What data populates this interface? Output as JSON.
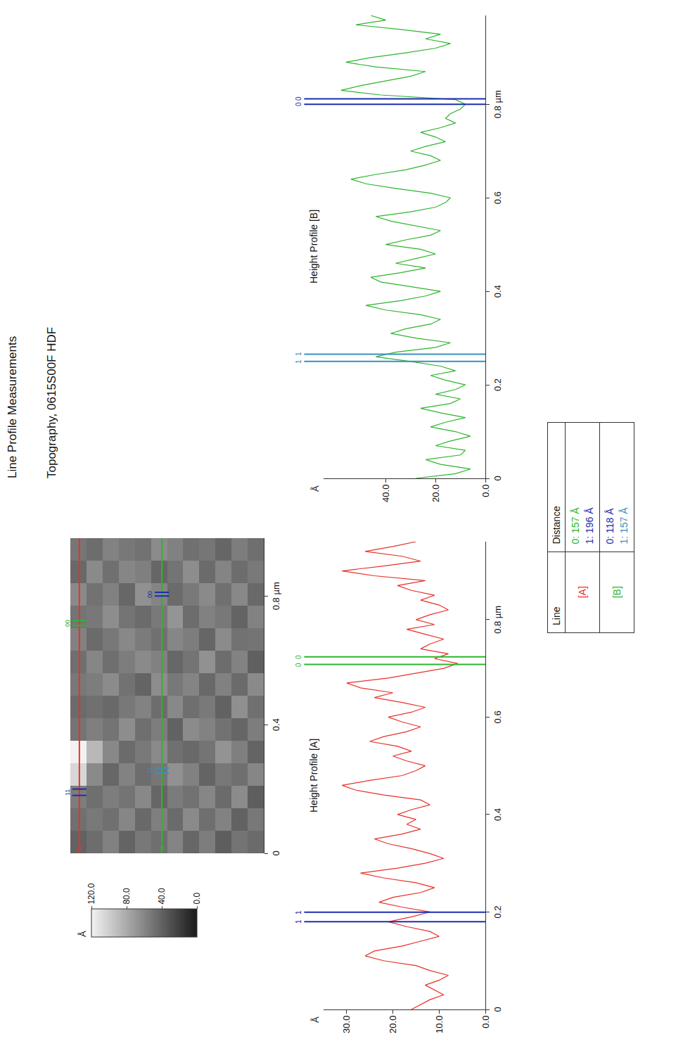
{
  "header": {
    "title": "Line Profile Measurements",
    "subtitle": "Topography, 0615S00F HDF"
  },
  "chart_data": [
    {
      "type": "heatmap",
      "x": [
        0.035,
        0.105,
        0.175,
        0.245,
        0.315,
        0.385,
        0.455,
        0.525,
        0.595,
        0.665,
        0.735,
        0.805,
        0.875,
        0.945
      ],
      "y": [
        0.025,
        0.075,
        0.125,
        0.175,
        0.225,
        0.275,
        0.325,
        0.375,
        0.425,
        0.475,
        0.525,
        0.575
      ],
      "z": [
        [
          45,
          52,
          38,
          60,
          41,
          55,
          48,
          62,
          39,
          50,
          58,
          44,
          53,
          47
        ],
        [
          50,
          40,
          63,
          47,
          56,
          42,
          65,
          45,
          58,
          49,
          41,
          61,
          46,
          55
        ],
        [
          38,
          58,
          45,
          52,
          67,
          49,
          40,
          57,
          46,
          63,
          52,
          48,
          59,
          42
        ],
        [
          55,
          47,
          60,
          41,
          50,
          58,
          53,
          44,
          66,
          42,
          57,
          62,
          45,
          51
        ],
        [
          43,
          62,
          49,
          57,
          44,
          63,
          47,
          59,
          50,
          55,
          46,
          53,
          64,
          48
        ],
        [
          59,
          45,
          54,
          66,
          48,
          40,
          61,
          52,
          43,
          60,
          68,
          45,
          50,
          57
        ],
        [
          47,
          56,
          42,
          51,
          62,
          55,
          46,
          64,
          57,
          48,
          53,
          59,
          42,
          63
        ],
        [
          52,
          44,
          61,
          46,
          53,
          47,
          58,
          41,
          62,
          54,
          45,
          66,
          56,
          49
        ],
        [
          41,
          60,
          50,
          58,
          45,
          64,
          52,
          49,
          55,
          61,
          50,
          43,
          60,
          52
        ],
        [
          57,
          48,
          55,
          43,
          61,
          50,
          44,
          63,
          47,
          52,
          64,
          57,
          48,
          58
        ],
        [
          46,
          53,
          47,
          62,
          88,
          56,
          48,
          55,
          60,
          45,
          52,
          49,
          62,
          46
        ],
        [
          40,
          48,
          55,
          105,
          120,
          50,
          45,
          52,
          47,
          58,
          50,
          62,
          44,
          51
        ]
      ],
      "xlim": [
        0,
        0.98
      ],
      "ylim": [
        0,
        0.6
      ],
      "xticks": [
        0,
        0.4,
        {
          "value": 0.8,
          "label": "0.8 µm"
        }
      ],
      "tick_labels": "x",
      "colorbar": {
        "title": "Å",
        "zlim": [
          0,
          120
        ],
        "zticks": [
          {
            "value": 0,
            "label": "0.0"
          },
          {
            "value": 40,
            "label": "40.0"
          },
          {
            "value": 80,
            "label": "80.0"
          },
          {
            "value": 120,
            "label": "120.0"
          }
        ]
      },
      "profile_lines": [
        {
          "name": "A",
          "color": "#e8302a",
          "y": 0.572
        },
        {
          "name": "B",
          "color": "#2db52d",
          "y": 0.316
        }
      ]
    },
    {
      "type": "line",
      "title": "Height Profile [A]",
      "color": "#e8302a",
      "y_label": "Å",
      "x": [
        0,
        0.01,
        0.02,
        0.03,
        0.04,
        0.05,
        0.06,
        0.07,
        0.08,
        0.09,
        0.1,
        0.11,
        0.12,
        0.13,
        0.14,
        0.15,
        0.16,
        0.17,
        0.18,
        0.19,
        0.2,
        0.21,
        0.22,
        0.23,
        0.24,
        0.25,
        0.26,
        0.27,
        0.28,
        0.29,
        0.3,
        0.31,
        0.32,
        0.33,
        0.34,
        0.35,
        0.36,
        0.37,
        0.38,
        0.39,
        0.4,
        0.41,
        0.42,
        0.43,
        0.44,
        0.45,
        0.46,
        0.47,
        0.48,
        0.49,
        0.5,
        0.51,
        0.52,
        0.53,
        0.54,
        0.55,
        0.56,
        0.57,
        0.58,
        0.59,
        0.6,
        0.61,
        0.62,
        0.63,
        0.64,
        0.65,
        0.66,
        0.67,
        0.68,
        0.69,
        0.7,
        0.71,
        0.72,
        0.73,
        0.74,
        0.75,
        0.76,
        0.77,
        0.78,
        0.79,
        0.8,
        0.81,
        0.82,
        0.83,
        0.84,
        0.85,
        0.86,
        0.87,
        0.88,
        0.89,
        0.9,
        0.91,
        0.92,
        0.93,
        0.94,
        0.95,
        0.96
      ],
      "values": [
        16,
        14,
        12,
        9,
        11,
        13,
        10,
        8,
        12,
        15,
        22,
        26,
        24,
        18,
        14,
        10,
        12,
        17,
        21,
        16,
        12,
        18,
        23,
        20,
        14,
        11,
        15,
        22,
        27,
        19,
        13,
        9,
        12,
        16,
        21,
        24,
        18,
        14,
        17,
        15,
        19,
        16,
        12,
        14,
        22,
        28,
        31,
        25,
        18,
        15,
        13,
        17,
        20,
        16,
        19,
        25,
        22,
        17,
        14,
        18,
        21,
        16,
        13,
        18,
        24,
        20,
        27,
        30,
        21,
        15,
        9,
        6,
        11,
        8,
        14,
        12,
        9,
        13,
        17,
        11,
        15,
        12,
        8,
        10,
        14,
        11,
        16,
        19,
        13,
        24,
        31,
        22,
        14,
        18,
        26,
        20,
        15
      ],
      "xlim": [
        0,
        0.96
      ],
      "ylim": [
        0,
        35
      ],
      "xticks": [
        0,
        0.2,
        0.4,
        0.6,
        {
          "value": 0.8,
          "label": "0.8 µm"
        }
      ],
      "yticks": [
        {
          "value": 0,
          "label": "0.0"
        },
        {
          "value": 10,
          "label": "10.0"
        },
        {
          "value": 20,
          "label": "20.0"
        },
        {
          "value": 30,
          "label": "30.0"
        }
      ],
      "cursors": [
        {
          "label": "0",
          "color": "#2db52d",
          "x": [
            0.708,
            0.7237
          ]
        },
        {
          "label": "1",
          "color": "#1a2fb0",
          "x": [
            0.18,
            0.1996
          ]
        }
      ]
    },
    {
      "type": "line",
      "title": "Height Profile [B]",
      "color": "#2db52d",
      "y_label": "Å",
      "x": [
        0,
        0.01,
        0.02,
        0.03,
        0.04,
        0.05,
        0.06,
        0.07,
        0.08,
        0.09,
        0.1,
        0.11,
        0.12,
        0.13,
        0.14,
        0.15,
        0.16,
        0.17,
        0.18,
        0.19,
        0.2,
        0.21,
        0.22,
        0.23,
        0.24,
        0.25,
        0.26,
        0.27,
        0.28,
        0.29,
        0.3,
        0.31,
        0.32,
        0.33,
        0.34,
        0.35,
        0.36,
        0.37,
        0.38,
        0.39,
        0.4,
        0.41,
        0.42,
        0.43,
        0.44,
        0.45,
        0.46,
        0.47,
        0.48,
        0.49,
        0.5,
        0.51,
        0.52,
        0.53,
        0.54,
        0.55,
        0.56,
        0.57,
        0.58,
        0.59,
        0.6,
        0.61,
        0.62,
        0.63,
        0.64,
        0.65,
        0.66,
        0.67,
        0.68,
        0.69,
        0.7,
        0.71,
        0.72,
        0.73,
        0.74,
        0.75,
        0.76,
        0.77,
        0.78,
        0.79,
        0.8,
        0.81,
        0.82,
        0.83,
        0.84,
        0.85,
        0.86,
        0.87,
        0.88,
        0.89,
        0.9,
        0.91,
        0.92,
        0.93,
        0.94,
        0.95,
        0.96,
        0.97,
        0.98,
        0.99
      ],
      "values": [
        28,
        12,
        6,
        18,
        24,
        10,
        8,
        20,
        14,
        6,
        12,
        22,
        16,
        8,
        18,
        26,
        14,
        10,
        20,
        12,
        8,
        16,
        22,
        12,
        18,
        30,
        44,
        36,
        20,
        14,
        28,
        38,
        32,
        22,
        18,
        26,
        40,
        48,
        34,
        24,
        18,
        30,
        42,
        46,
        34,
        24,
        36,
        28,
        20,
        26,
        40,
        32,
        22,
        18,
        28,
        38,
        44,
        30,
        20,
        16,
        14,
        22,
        36,
        48,
        54,
        44,
        32,
        24,
        18,
        22,
        30,
        24,
        16,
        20,
        26,
        18,
        12,
        16,
        14,
        10,
        8,
        12,
        42,
        58,
        50,
        40,
        30,
        24,
        44,
        56,
        46,
        32,
        20,
        14,
        24,
        18,
        34,
        52,
        40,
        46
      ],
      "xlim": [
        0,
        0.99
      ],
      "ylim": [
        0,
        65
      ],
      "xticks": [
        0,
        0.2,
        0.4,
        0.6,
        {
          "value": 0.8,
          "label": "0.8 µm"
        }
      ],
      "yticks": [
        {
          "value": 0,
          "label": "0.0"
        },
        {
          "value": 20,
          "label": "20.0"
        },
        {
          "value": 40,
          "label": "40.0"
        }
      ],
      "cursors": [
        {
          "label": "0",
          "color": "#1a2fb0",
          "x": [
            0.8,
            0.8118
          ]
        },
        {
          "label": "1",
          "color": "#3a8fc0",
          "x": [
            0.25,
            0.2657
          ]
        }
      ]
    }
  ],
  "table": {
    "columns": [
      "Line",
      "Distance"
    ],
    "rows": [
      {
        "line": "[A]",
        "color": "#e8302a",
        "distances": [
          {
            "text": "0: 157 Å",
            "color": "#2db52d"
          },
          {
            "text": "1: 196 Å",
            "color": "#1a2fb0"
          }
        ]
      },
      {
        "line": "[B]",
        "color": "#2db52d",
        "distances": [
          {
            "text": "0: 118 Å",
            "color": "#1a2fb0"
          },
          {
            "text": "1: 157 Å",
            "color": "#3a8fc0"
          }
        ]
      }
    ]
  }
}
